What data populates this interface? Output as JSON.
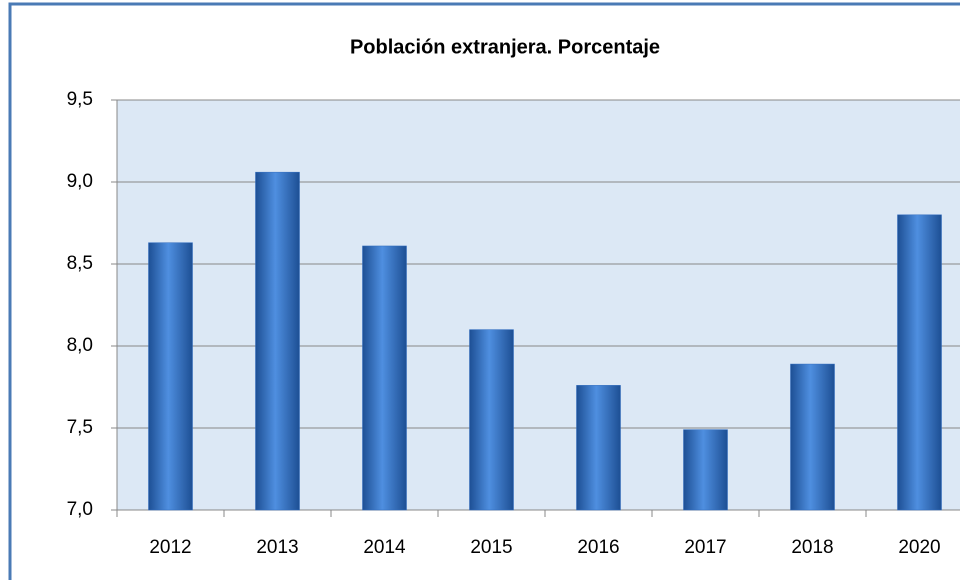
{
  "chart_data": {
    "type": "bar",
    "title": "Población extranjera. Porcentaje",
    "categories": [
      "2012",
      "2013",
      "2014",
      "2015",
      "2016",
      "2017",
      "2018",
      "2020"
    ],
    "values": [
      8.63,
      9.06,
      8.61,
      8.1,
      7.76,
      7.49,
      7.89,
      8.8
    ],
    "color": "#2f6bbf",
    "ylim": [
      7,
      9.5
    ],
    "yticks": [
      {
        "value": 7,
        "label": "7,0"
      },
      {
        "value": 7.5,
        "label": "7,5"
      },
      {
        "value": 8,
        "label": "8,0"
      },
      {
        "value": 8.5,
        "label": "8,5"
      },
      {
        "value": 9,
        "label": "9,0"
      },
      {
        "value": 9.5,
        "label": "9,5"
      }
    ],
    "grid": true
  }
}
